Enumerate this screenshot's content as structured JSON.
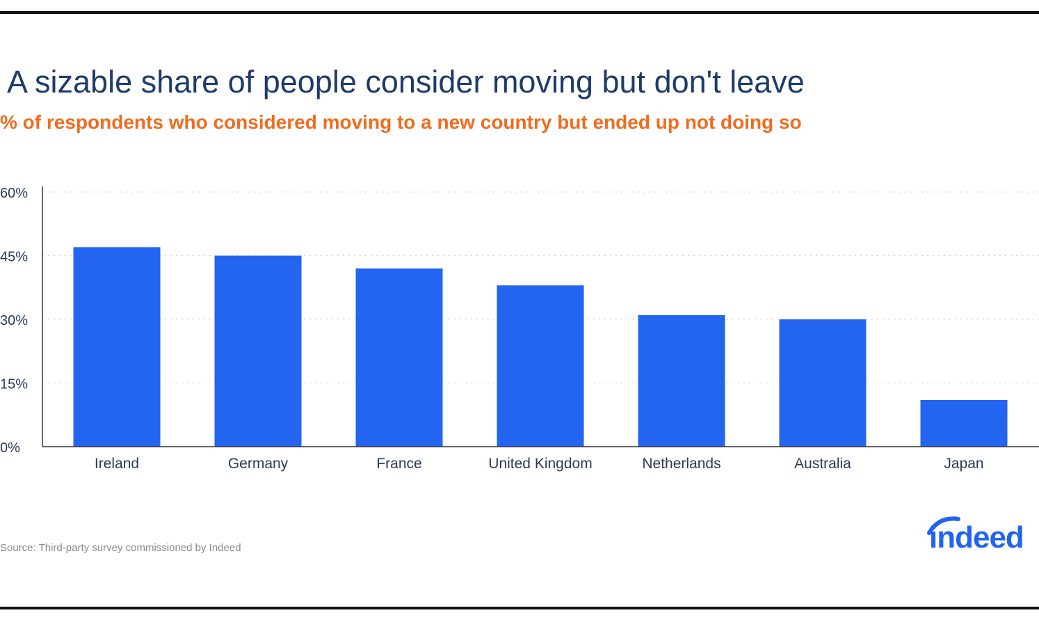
{
  "colors": {
    "title": "#1d3b6c",
    "subtitle": "#f26b1d",
    "bar": "#2364f1",
    "axis_text": "#2b3a55",
    "grid": "#cccccc",
    "brand": "#2164f3"
  },
  "title": "A sizable share of people consider moving but don't leave",
  "subtitle": "% of respondents who considered moving to a new country but ended up not doing so",
  "source": "Source: Third-party survey commissioned by Indeed",
  "logo": {
    "text": "indeed",
    "icon": "indeed-logo"
  },
  "chart_data": {
    "type": "bar",
    "title": "A sizable share of people consider moving but don't leave",
    "subtitle": "% of respondents who considered moving to a new country but ended up not doing so",
    "categories": [
      "Ireland",
      "Germany",
      "France",
      "United Kingdom",
      "Netherlands",
      "Australia",
      "Japan"
    ],
    "values": [
      47,
      45,
      42,
      38,
      31,
      30,
      11
    ],
    "unit": "%",
    "ylim": [
      0,
      60
    ],
    "yticks": [
      0,
      15,
      30,
      45,
      60
    ],
    "ytick_labels": [
      "0%",
      "15%",
      "30%",
      "45%",
      "60%"
    ],
    "xlabel": "",
    "ylabel": "",
    "grid": true,
    "legend": false
  }
}
